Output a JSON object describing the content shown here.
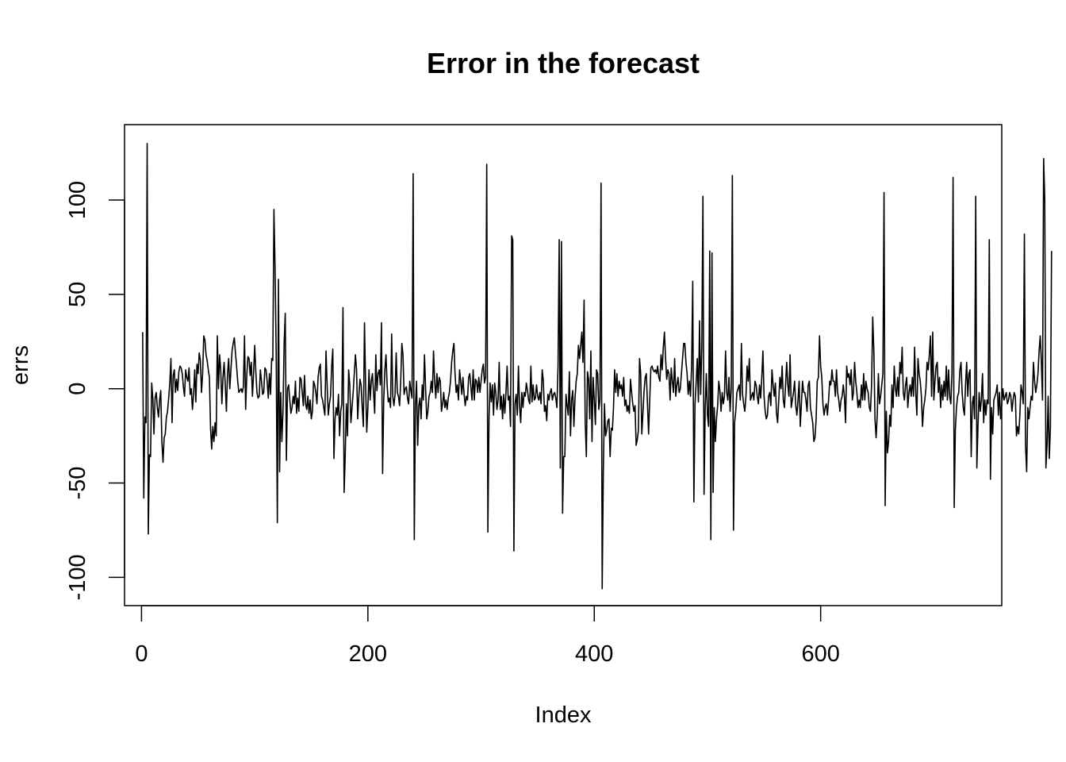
{
  "chart_data": {
    "type": "line",
    "title": "Error in the forecast",
    "xlabel": "Index",
    "ylabel": "errs",
    "xlim": [
      -15,
      760
    ],
    "ylim": [
      -115,
      140
    ],
    "x_ticks": [
      0,
      200,
      400,
      600
    ],
    "x_tick_labels": [
      "0",
      "200",
      "400",
      "600"
    ],
    "y_ticks": [
      -100,
      -50,
      0,
      50,
      100
    ],
    "y_tick_labels": [
      "-100",
      "-50",
      "0",
      "50",
      "100"
    ],
    "grid": false,
    "legend": "none",
    "line_color": "#000000",
    "series": [
      {
        "x_start": 1,
        "x_step": 1,
        "y": [
          30,
          -58,
          -15,
          -18,
          130,
          -77,
          -35,
          -36,
          3,
          -5,
          -24,
          -5,
          -2,
          -10,
          -15,
          -6,
          -1,
          -28,
          -39,
          -26,
          -24,
          -15,
          -12,
          -5,
          3,
          16,
          -18,
          7,
          10,
          -2,
          5,
          -1,
          9,
          12,
          11,
          8,
          1,
          -4,
          10,
          6,
          4,
          11,
          -3,
          0,
          -11,
          -3,
          10,
          -7,
          13,
          8,
          19,
          15,
          -2,
          8,
          28,
          26,
          18,
          15,
          10,
          6,
          -21,
          -32,
          -20,
          -28,
          -18,
          -25,
          28,
          0,
          18,
          10,
          -8,
          6,
          14,
          2,
          -12,
          8,
          16,
          0,
          10,
          20,
          24,
          27,
          19,
          12,
          4,
          -2,
          -1,
          0,
          -2,
          1,
          28,
          -11,
          7,
          17,
          16,
          7,
          14,
          -4,
          8,
          23,
          9,
          -2,
          -5,
          -4,
          10,
          4,
          -3,
          -2,
          11,
          10,
          4,
          -5,
          8,
          -3,
          16,
          15,
          95,
          64,
          18,
          -71,
          58,
          -44,
          -2,
          -28,
          -12,
          24,
          40,
          -38,
          0,
          2,
          -6,
          -13,
          -10,
          -4,
          -8,
          4,
          -13,
          -5,
          -12,
          6,
          5,
          -2,
          -9,
          7,
          -8,
          -11,
          -4,
          -13,
          -6,
          -16,
          -12,
          4,
          2,
          -2,
          -8,
          6,
          11,
          13,
          -4,
          -6,
          -10,
          -14,
          20,
          2,
          -14,
          -8,
          -4,
          12,
          21,
          -37,
          -16,
          -10,
          -14,
          -3,
          -25,
          -12,
          -8,
          43,
          -55,
          -35,
          -8,
          -25,
          10,
          2,
          -18,
          -10,
          -2,
          8,
          18,
          10,
          -16,
          -4,
          5,
          2,
          -10,
          -20,
          35,
          2,
          -23,
          -10,
          10,
          -6,
          4,
          8,
          -2,
          -13,
          18,
          -1,
          8,
          10,
          2,
          35,
          -45,
          -6,
          10,
          18,
          2,
          -7,
          -5,
          -10,
          29,
          -4,
          -9,
          -3,
          19,
          -2,
          -4,
          -9,
          4,
          24,
          18,
          -3,
          0,
          1,
          -5,
          -8,
          4,
          -1,
          -5,
          114,
          -80,
          -9,
          4,
          -30,
          -9,
          -5,
          -16,
          2,
          -6,
          18,
          0,
          -16,
          -12,
          -4,
          -2,
          4,
          -2,
          20,
          4,
          -5,
          8,
          -2,
          6,
          4,
          -12,
          -8,
          -2,
          -10,
          -6,
          -11,
          -5,
          -2,
          4,
          14,
          20,
          24,
          8,
          -2,
          2,
          -6,
          10,
          4,
          -3,
          6,
          -3,
          -9,
          -4,
          -6,
          6,
          8,
          1,
          -6,
          10,
          -6,
          5,
          4,
          -2,
          6,
          -2,
          4,
          10,
          13,
          3,
          6,
          119,
          -76,
          -16,
          3,
          -7,
          2,
          -14,
          3,
          -2,
          -11,
          -6,
          14,
          -11,
          -4,
          -16,
          -3,
          -13,
          -2,
          12,
          -6,
          -4,
          -20,
          81,
          79,
          -86,
          -8,
          -3,
          -14,
          12,
          -9,
          -18,
          -2,
          -10,
          -2,
          -4,
          3,
          -1,
          -6,
          -8,
          12,
          -7,
          2,
          -6,
          -5,
          2,
          -4,
          -6,
          -2,
          -8,
          10,
          4,
          -12,
          -9,
          -17,
          -3,
          -6,
          -2,
          0,
          -6,
          -3,
          -2,
          -5,
          -10,
          12,
          79,
          -42,
          78,
          -66,
          -36,
          -36,
          -3,
          -9,
          -14,
          9,
          -25,
          -6,
          -1,
          -20,
          -5,
          4,
          8,
          23,
          16,
          23,
          30,
          14,
          47,
          -18,
          -36,
          9,
          5,
          -16,
          20,
          -28,
          6,
          -6,
          -19,
          10,
          8,
          -11,
          -6,
          109,
          -106,
          -44,
          -8,
          -25,
          -22,
          -17,
          -16,
          -36,
          -21,
          -22,
          -10,
          10,
          -2,
          8,
          -4,
          4,
          0,
          2,
          -4,
          6,
          -9,
          -6,
          -12,
          -9,
          -13,
          5,
          -2,
          -8,
          -12,
          -9,
          -30,
          -27,
          -22,
          16,
          8,
          -24,
          -13,
          -1,
          6,
          8,
          -8,
          -24,
          -6,
          11,
          12,
          10,
          9,
          10,
          8,
          12,
          6,
          4,
          18,
          10,
          22,
          30,
          16,
          5,
          10,
          8,
          -6,
          11,
          4,
          -2,
          16,
          -4,
          2,
          6,
          -2,
          0,
          8,
          16,
          24,
          24,
          14,
          8,
          -3,
          4,
          -4,
          12,
          57,
          -60,
          -8,
          3,
          16,
          -7,
          36,
          -3,
          22,
          102,
          -56,
          -10,
          8,
          -14,
          -20,
          73,
          -80,
          72,
          -55,
          -10,
          -28,
          -16,
          -9,
          4,
          -1,
          -12,
          -2,
          -8,
          -4,
          20,
          -2,
          -6,
          6,
          -12,
          0,
          113,
          -75,
          -18,
          -12,
          -2,
          0,
          2,
          -6,
          24,
          -3,
          -8,
          -12,
          -4,
          12,
          4,
          16,
          -6,
          -4,
          -2,
          -6,
          4,
          2,
          -4,
          -8,
          2,
          -5,
          6,
          20,
          -4,
          -12,
          -16,
          -14,
          -4,
          -2,
          -9,
          10,
          2,
          -4,
          3,
          -13,
          -18,
          -6,
          6,
          0,
          12,
          -6,
          -10,
          2,
          14,
          2,
          -4,
          18,
          -10,
          -6,
          -2,
          4,
          -9,
          -14,
          -6,
          4,
          -20,
          -8,
          4,
          -2,
          -2,
          -6,
          -12,
          2,
          4,
          -10,
          -14,
          -18,
          -28,
          -26,
          -16,
          4,
          6,
          28,
          12,
          6,
          -8,
          -14,
          -10,
          -8,
          -14,
          -6,
          4,
          2,
          10,
          4,
          4,
          -4,
          10,
          -2,
          -6,
          -12,
          -6,
          -4,
          2,
          -4,
          -18,
          12,
          6,
          8,
          2,
          10,
          -6,
          -2,
          14,
          4,
          -2,
          -10,
          -6,
          -10,
          2,
          -6,
          8,
          -6,
          4,
          0,
          -2,
          -10,
          -12,
          2,
          38,
          20,
          -16,
          -26,
          -14,
          8,
          -8,
          -4,
          2,
          8,
          104,
          -62,
          -12,
          -34,
          -28,
          -14,
          -20,
          2,
          -10,
          12,
          0,
          -4,
          6,
          -4,
          14,
          8,
          22,
          -2,
          -6,
          2,
          6,
          -10,
          -2,
          2,
          -4,
          6,
          -4,
          22,
          -2,
          -14,
          16,
          8,
          4,
          -4,
          -20,
          -10,
          -6,
          0,
          14,
          10,
          18,
          28,
          -4,
          30,
          -6,
          4,
          12,
          14,
          -2,
          6,
          -10,
          2,
          -6,
          4,
          -4,
          12,
          -6,
          10,
          -4,
          -8,
          8,
          112,
          -63,
          -22,
          -10,
          -4,
          -2,
          10,
          14,
          -2,
          -10,
          -14,
          2,
          14,
          -4,
          8,
          10,
          -36,
          -8,
          -4,
          -16,
          102,
          -42,
          -20,
          -2,
          -12,
          -6,
          8,
          -18,
          -6,
          -14,
          -6,
          -8,
          79,
          -48,
          -10,
          -24,
          -6,
          -4,
          -2,
          2,
          -14,
          -2,
          -16,
          -8,
          0,
          -6,
          -4,
          -2,
          -8,
          -6,
          -2,
          -4,
          -12,
          -6,
          -2,
          -4,
          -25,
          -20,
          -24,
          -14,
          2,
          -2,
          -8,
          82,
          -30,
          -44,
          -10,
          -16,
          -10,
          -4,
          -6,
          14,
          4,
          -2,
          2,
          8,
          20,
          28,
          14,
          -6,
          122,
          100,
          -42,
          -30,
          -4,
          -37,
          -20,
          73
        ]
      }
    ]
  }
}
